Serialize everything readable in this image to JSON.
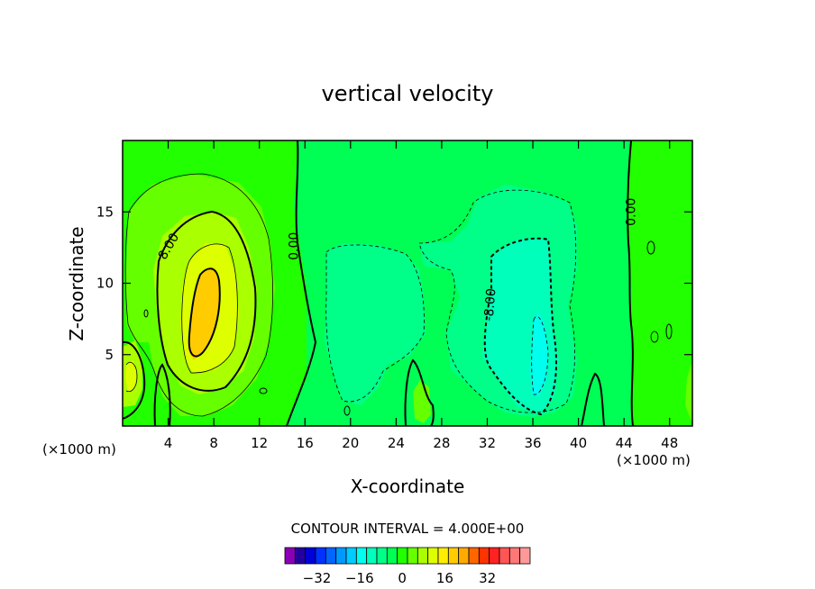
{
  "chart_data": {
    "type": "contour",
    "title": "vertical velocity",
    "xlabel": "X-coordinate",
    "ylabel": "Z-coordinate",
    "x_unit_left": "(×1000 m)",
    "x_unit_right": "(×1000 m)",
    "xlim": [
      0,
      50
    ],
    "ylim": [
      0,
      20
    ],
    "x_ticks": [
      4,
      8,
      12,
      16,
      20,
      24,
      28,
      32,
      36,
      40,
      44,
      48
    ],
    "y_ticks": [
      5,
      10,
      15
    ],
    "contour_interval_text": "CONTOUR INTERVAL = 4.000E+00",
    "contour_interval": 4.0,
    "contour_labels": [
      {
        "text": "8.00",
        "x": 4.0,
        "y": 12.6,
        "angle": -60
      },
      {
        "text": "0.00",
        "x": 15.0,
        "y": 12.6,
        "angle": -90
      },
      {
        "text": "-8.00",
        "x": 32.2,
        "y": 8.5,
        "angle": -85
      },
      {
        "text": "0.00",
        "x": 44.6,
        "y": 15.0,
        "angle": -90
      }
    ],
    "features": [
      {
        "kind": "updraft",
        "x": 7.8,
        "y": 9.2,
        "peak": 16
      },
      {
        "kind": "weak_updraft",
        "x": 1.0,
        "y": 3.6,
        "peak": 8
      },
      {
        "kind": "downdraft",
        "x": 36.5,
        "y": 5.2,
        "peak": -12
      },
      {
        "kind": "weak_downdraft",
        "x": 22.0,
        "y": 9.0,
        "peak": -4
      }
    ],
    "colorbar": {
      "colors": [
        "#8b00b7",
        "#2400a0",
        "#0000d8",
        "#0033ff",
        "#0066ff",
        "#0099ff",
        "#00ccff",
        "#00ffee",
        "#00ffbb",
        "#00ff88",
        "#00ff55",
        "#22ff00",
        "#66ff00",
        "#aaff00",
        "#ddff00",
        "#ffee00",
        "#ffcc00",
        "#ffaa00",
        "#ff6600",
        "#ff3300",
        "#ff2222",
        "#ff5555",
        "#ff7777",
        "#ff9999"
      ],
      "tick_labels": [
        "-32",
        "-16",
        "0",
        "16",
        "32"
      ],
      "tick_values": [
        -32,
        -16,
        0,
        16,
        32
      ],
      "range": [
        -44,
        48
      ]
    }
  }
}
